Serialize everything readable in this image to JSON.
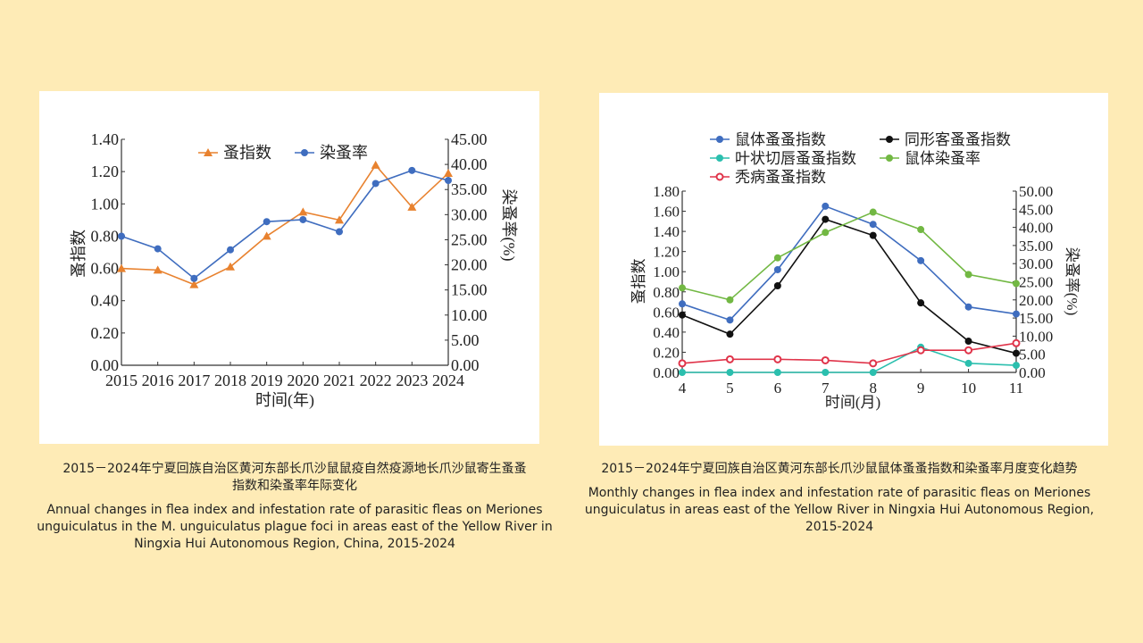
{
  "chart_data": [
    {
      "type": "line",
      "title": "",
      "xlabel": "时间(年)",
      "ylabel": "蚤指数",
      "y2label": "染蚤率(%)",
      "x": [
        "2015",
        "2016",
        "2017",
        "2018",
        "2019",
        "2020",
        "2021",
        "2022",
        "2023",
        "2024"
      ],
      "ylim": [
        0,
        1.4
      ],
      "y2lim": [
        0,
        45
      ],
      "y_ticks": [
        "0.00",
        "0.20",
        "0.40",
        "0.60",
        "0.80",
        "1.00",
        "1.20",
        "1.40"
      ],
      "y2_ticks": [
        "0.00",
        "5.00",
        "10.00",
        "15.00",
        "20.00",
        "25.00",
        "30.00",
        "35.00",
        "40.00",
        "45.00"
      ],
      "legend_position": "top",
      "series": [
        {
          "name": "蚤指数",
          "axis": "left",
          "marker": "triangle",
          "color": "#e8822f",
          "values": [
            0.6,
            0.59,
            0.5,
            0.61,
            0.8,
            0.95,
            0.9,
            1.24,
            0.98,
            1.19
          ]
        },
        {
          "name": "染蚤率",
          "axis": "right",
          "marker": "circle",
          "color": "#3f6dbf",
          "values": [
            25.7,
            23.2,
            17.3,
            23.0,
            28.6,
            29.0,
            26.6,
            36.2,
            38.8,
            36.8
          ]
        }
      ]
    },
    {
      "type": "line",
      "title": "",
      "xlabel": "时间(月)",
      "ylabel": "蚤指数",
      "y2label": "染蚤率(%)",
      "x": [
        "4",
        "5",
        "6",
        "7",
        "8",
        "9",
        "10",
        "11"
      ],
      "ylim": [
        0,
        1.8
      ],
      "y2lim": [
        0,
        50
      ],
      "y_ticks": [
        "0.00",
        "0.20",
        "0.40",
        "0.60",
        "0.80",
        "1.00",
        "1.20",
        "1.40",
        "1.60",
        "1.80"
      ],
      "y2_ticks": [
        "0.00",
        "5.00",
        "10.00",
        "15.00",
        "20.00",
        "25.00",
        "30.00",
        "35.00",
        "40.00",
        "45.00",
        "50.00"
      ],
      "legend_position": "top",
      "series": [
        {
          "name": "鼠体蚤蚤指数",
          "axis": "left",
          "marker": "circle",
          "color": "#3f6dbf",
          "values": [
            0.68,
            0.52,
            1.02,
            1.65,
            1.47,
            1.11,
            0.65,
            0.58
          ]
        },
        {
          "name": "同形客蚤蚤指数",
          "axis": "left",
          "marker": "circle",
          "color": "#111111",
          "values": [
            0.57,
            0.38,
            0.86,
            1.52,
            1.36,
            0.69,
            0.31,
            0.19
          ]
        },
        {
          "name": "叶状切唇蚤蚤指数",
          "axis": "left",
          "marker": "circle",
          "color": "#2bbfae",
          "values": [
            0,
            0,
            0,
            0,
            0,
            0.25,
            0.09,
            0.07
          ]
        },
        {
          "name": "鼠体染蚤率",
          "axis": "right",
          "marker": "circle",
          "color": "#72b843",
          "values": [
            23.3,
            20.0,
            31.6,
            38.6,
            44.2,
            39.4,
            27.0,
            24.5
          ]
        },
        {
          "name": "秃病蚤蚤指数",
          "axis": "left",
          "marker": "open-circle",
          "color": "#e0344a",
          "values": [
            0.09,
            0.13,
            0.13,
            0.12,
            0.09,
            0.22,
            0.22,
            0.29
          ]
        }
      ]
    }
  ],
  "captions": [
    {
      "zh": "2015－2024年宁夏回族自治区黄河东部长爪沙鼠鼠疫自然疫源地长爪沙鼠寄生蚤蚤指数和染蚤率年际变化",
      "en": "Annual changes in flea index and infestation rate of parasitic fleas on Meriones unguiculatus in the M. unguiculatus plague foci in areas east of the Yellow River in Ningxia Hui Autonomous Region, China, 2015-2024"
    },
    {
      "zh": "2015－2024年宁夏回族自治区黄河东部长爪沙鼠鼠体蚤蚤指数和染蚤率月度变化趋势",
      "en": "Monthly changes in flea index and infestation rate of parasitic fleas on Meriones unguiculatus in areas east of the Yellow River in Ningxia Hui Autonomous Region, 2015-2024"
    }
  ]
}
